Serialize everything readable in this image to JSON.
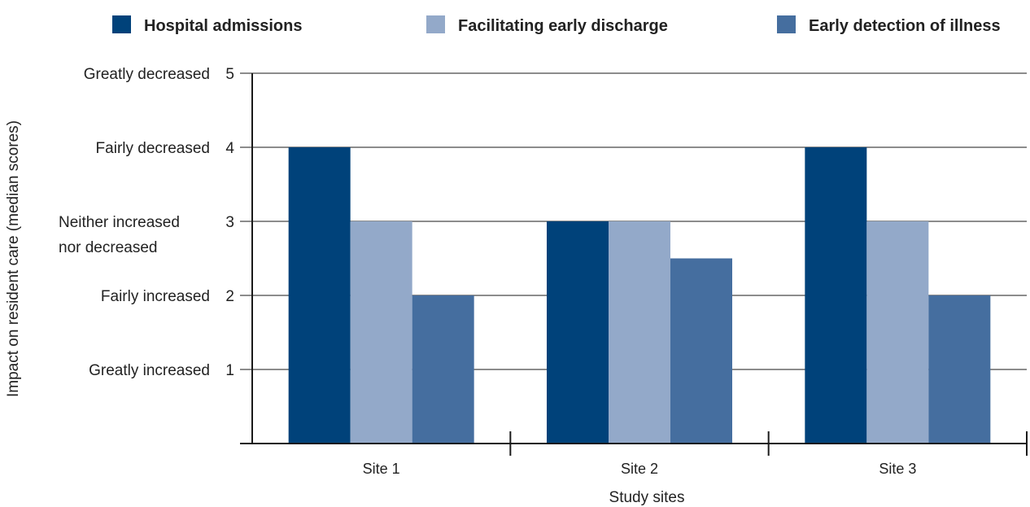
{
  "chart_data": {
    "type": "bar",
    "categories": [
      "Site 1",
      "Site 2",
      "Site 3"
    ],
    "series": [
      {
        "name": "Hospital admissions",
        "color": "#00427a",
        "values": [
          4,
          3,
          4
        ]
      },
      {
        "name": "Facilitating early discharge",
        "color": "#93a9c9",
        "values": [
          3,
          3,
          3
        ]
      },
      {
        "name": "Early detection of illness",
        "color": "#456e9f",
        "values": [
          2,
          2.5,
          2
        ]
      }
    ],
    "yticks": [
      {
        "value": 5,
        "label": "Greatly decreased",
        "number": "5"
      },
      {
        "value": 4,
        "label": "Fairly decreased",
        "number": "4"
      },
      {
        "value": 3,
        "label": "Neither increased nor decreased",
        "number": "3"
      },
      {
        "value": 2,
        "label": "Fairly increased",
        "number": "2"
      },
      {
        "value": 1,
        "label": "Greatly increased",
        "number": "1"
      }
    ],
    "ylim": [
      0,
      5
    ],
    "xlabel": "Study sites",
    "ylabel": "Impact on resident care (median scores)",
    "grid": true,
    "legend_position": "top"
  }
}
